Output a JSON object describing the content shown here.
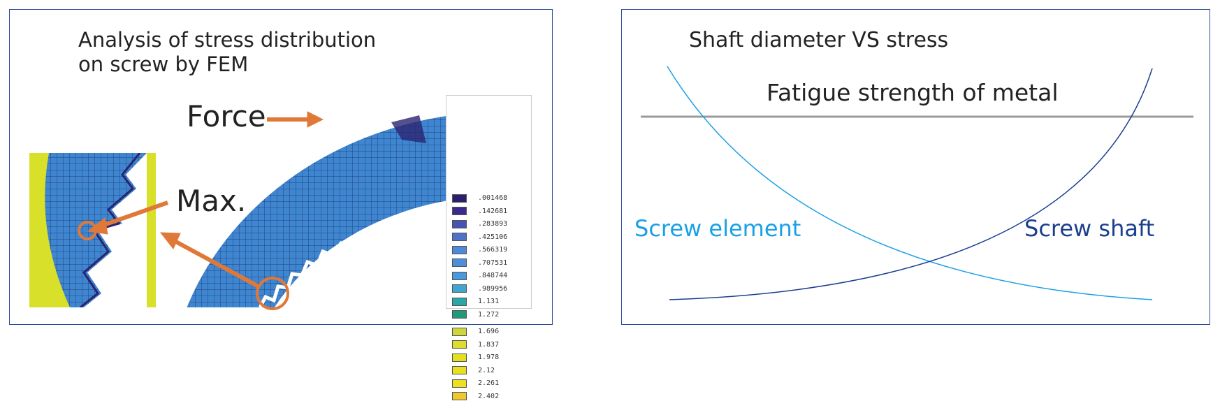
{
  "left": {
    "title_line1": "Analysis of stress distribution",
    "title_line2": "on screw by FEM",
    "force_label": "Force",
    "max_label": "Max.",
    "legend": [
      {
        "value": ".001468",
        "color": "#2b1e6e"
      },
      {
        "value": ".142681",
        "color": "#3a2a8c"
      },
      {
        "value": ".283893",
        "color": "#4456b0"
      },
      {
        "value": ".425106",
        "color": "#4d72c8"
      },
      {
        "value": ".566319",
        "color": "#4f8ad8"
      },
      {
        "value": ".707531",
        "color": "#4c90dc"
      },
      {
        "value": ".848744",
        "color": "#4a98de"
      },
      {
        "value": ".989956",
        "color": "#3fa6d2"
      },
      {
        "value": "1.131",
        "color": "#2aa6a8"
      },
      {
        "value": "1.272",
        "color": "#1e9a78"
      },
      {
        "value": "1.696",
        "color": "#cfd63a"
      },
      {
        "value": "1.837",
        "color": "#dede2a"
      },
      {
        "value": "1.978",
        "color": "#e4e020"
      },
      {
        "value": "2.12",
        "color": "#e8e020"
      },
      {
        "value": "2.261",
        "color": "#ece020"
      },
      {
        "value": "2.402",
        "color": "#efc830"
      }
    ],
    "arrow_color": "#e07838"
  },
  "right": {
    "title": "Shaft diameter VS stress",
    "fatigue_label": "Fatigue strength of metal",
    "screw_element_label": "Screw element",
    "screw_shaft_label": "Screw shaft",
    "colors": {
      "screw_element": "#1aa0e6",
      "screw_shaft": "#1a3f8f",
      "fatigue_line": "#9a9a9a"
    }
  }
}
